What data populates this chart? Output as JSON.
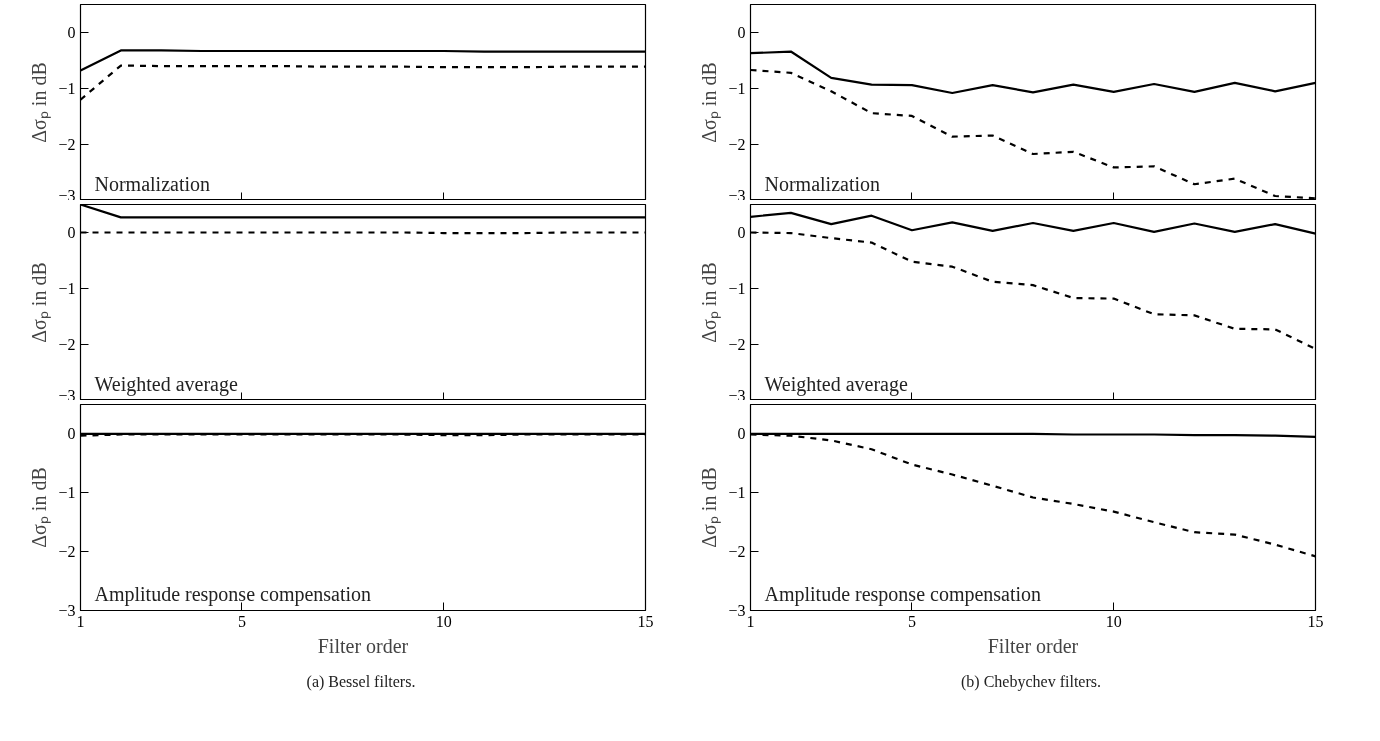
{
  "chart_data": [
    {
      "type": "line",
      "title": "Normalization",
      "ylabel": "Δσₚ in dB",
      "x": [
        1,
        2,
        3,
        4,
        5,
        6,
        7,
        8,
        9,
        10,
        11,
        12,
        13,
        14,
        15
      ],
      "xlim": [
        1,
        15
      ],
      "xticks": [
        1,
        5,
        10,
        15
      ],
      "ylim": [
        -3,
        0.5
      ],
      "yticks": [
        0,
        -1,
        -2,
        -3
      ],
      "tick_labels": "y",
      "grid": false,
      "series": [
        {
          "color": "#000000",
          "line_style": "solid",
          "values": [
            -0.68,
            -0.32,
            -0.32,
            -0.33,
            -0.33,
            -0.33,
            -0.33,
            -0.33,
            -0.33,
            -0.33,
            -0.34,
            -0.34,
            -0.34,
            -0.34,
            -0.34
          ]
        },
        {
          "color": "#000000",
          "line_style": "dashed",
          "values": [
            -1.2,
            -0.59,
            -0.6,
            -0.6,
            -0.6,
            -0.6,
            -0.61,
            -0.61,
            -0.61,
            -0.62,
            -0.62,
            -0.62,
            -0.61,
            -0.61,
            -0.61
          ]
        }
      ]
    },
    {
      "type": "line",
      "title": "Weighted average",
      "ylabel": "Δσₚ in dB",
      "x": [
        1,
        2,
        3,
        4,
        5,
        6,
        7,
        8,
        9,
        10,
        11,
        12,
        13,
        14,
        15
      ],
      "xlim": [
        1,
        15
      ],
      "xticks": [
        1,
        5,
        10,
        15
      ],
      "ylim": [
        -3,
        0.5
      ],
      "yticks": [
        0,
        -1,
        -2,
        -3
      ],
      "tick_labels": "y",
      "grid": false,
      "series": [
        {
          "color": "#000000",
          "line_style": "solid",
          "values": [
            0.5,
            0.27,
            0.27,
            0.27,
            0.27,
            0.27,
            0.27,
            0.27,
            0.27,
            0.27,
            0.27,
            0.27,
            0.27,
            0.27,
            0.27
          ]
        },
        {
          "color": "#000000",
          "line_style": "dashed",
          "values": [
            0,
            0,
            0,
            0,
            0,
            0,
            0,
            0,
            0,
            -0.01,
            -0.01,
            -0.01,
            0,
            0,
            0
          ]
        }
      ]
    },
    {
      "type": "line",
      "title": "Amplitude response compensation",
      "ylabel": "Δσₚ in dB",
      "xlabel": "Filter order",
      "annotations": [
        "(a)  Bessel filters."
      ],
      "x": [
        1,
        2,
        3,
        4,
        5,
        6,
        7,
        8,
        9,
        10,
        11,
        12,
        13,
        14,
        15
      ],
      "xlim": [
        1,
        15
      ],
      "xticks": [
        1,
        5,
        10,
        15
      ],
      "ylim": [
        -3,
        0.5
      ],
      "yticks": [
        0,
        -1,
        -2,
        -3
      ],
      "grid": false,
      "series": [
        {
          "color": "#000000",
          "line_style": "solid",
          "values": [
            0,
            0,
            0,
            0,
            0,
            0,
            0,
            0,
            0,
            0,
            0,
            0,
            0,
            0,
            0
          ]
        },
        {
          "color": "#000000",
          "line_style": "dashed",
          "values": [
            -0.03,
            -0.01,
            -0.01,
            -0.01,
            -0.01,
            -0.01,
            -0.01,
            -0.01,
            -0.01,
            -0.02,
            -0.02,
            -0.01,
            -0.01,
            -0.01,
            -0.01
          ]
        }
      ]
    },
    {
      "type": "line",
      "title": "Normalization",
      "ylabel": "Δσₚ in dB",
      "x": [
        1,
        2,
        3,
        4,
        5,
        6,
        7,
        8,
        9,
        10,
        11,
        12,
        13,
        14,
        15
      ],
      "xlim": [
        1,
        15
      ],
      "xticks": [
        1,
        5,
        10,
        15
      ],
      "ylim": [
        -3,
        0.5
      ],
      "yticks": [
        0,
        -1,
        -2,
        -3
      ],
      "tick_labels": "y",
      "grid": false,
      "series": [
        {
          "color": "#000000",
          "line_style": "solid",
          "values": [
            -0.37,
            -0.34,
            -0.81,
            -0.93,
            -0.94,
            -1.08,
            -0.94,
            -1.07,
            -0.93,
            -1.06,
            -0.92,
            -1.06,
            -0.9,
            -1.05,
            -0.9
          ]
        },
        {
          "color": "#000000",
          "line_style": "dashed",
          "values": [
            -0.67,
            -0.72,
            -1.05,
            -1.44,
            -1.49,
            -1.86,
            -1.84,
            -2.17,
            -2.13,
            -2.41,
            -2.39,
            -2.71,
            -2.61,
            -2.92,
            -2.96
          ]
        }
      ]
    },
    {
      "type": "line",
      "title": "Weighted average",
      "ylabel": "Δσₚ in dB",
      "x": [
        1,
        2,
        3,
        4,
        5,
        6,
        7,
        8,
        9,
        10,
        11,
        12,
        13,
        14,
        15
      ],
      "xlim": [
        1,
        15
      ],
      "xticks": [
        1,
        5,
        10,
        15
      ],
      "ylim": [
        -3,
        0.5
      ],
      "yticks": [
        0,
        -1,
        -2,
        -3
      ],
      "tick_labels": "y",
      "grid": false,
      "series": [
        {
          "color": "#000000",
          "line_style": "solid",
          "values": [
            0.28,
            0.35,
            0.15,
            0.3,
            0.04,
            0.18,
            0.03,
            0.17,
            0.03,
            0.17,
            0.01,
            0.16,
            0.01,
            0.15,
            -0.02
          ]
        },
        {
          "color": "#000000",
          "line_style": "dashed",
          "values": [
            0,
            -0.01,
            -0.1,
            -0.18,
            -0.52,
            -0.61,
            -0.88,
            -0.94,
            -1.17,
            -1.18,
            -1.46,
            -1.48,
            -1.72,
            -1.73,
            -2.08
          ]
        }
      ]
    },
    {
      "type": "line",
      "title": "Amplitude response compensation",
      "ylabel": "Δσₚ in dB",
      "xlabel": "Filter order",
      "annotations": [
        "(b)  Chebychev filters."
      ],
      "x": [
        1,
        2,
        3,
        4,
        5,
        6,
        7,
        8,
        9,
        10,
        11,
        12,
        13,
        14,
        15
      ],
      "xlim": [
        1,
        15
      ],
      "xticks": [
        1,
        5,
        10,
        15
      ],
      "ylim": [
        -3,
        0.5
      ],
      "yticks": [
        0,
        -1,
        -2,
        -3
      ],
      "grid": false,
      "series": [
        {
          "color": "#000000",
          "line_style": "solid",
          "values": [
            0,
            0,
            0,
            0,
            0,
            0,
            0,
            0,
            -0.01,
            -0.01,
            -0.01,
            -0.02,
            -0.02,
            -0.03,
            -0.05
          ]
        },
        {
          "color": "#000000",
          "line_style": "dashed",
          "values": [
            -0.01,
            -0.03,
            -0.11,
            -0.26,
            -0.52,
            -0.69,
            -0.88,
            -1.08,
            -1.19,
            -1.32,
            -1.5,
            -1.67,
            -1.71,
            -1.88,
            -2.08
          ]
        }
      ]
    }
  ]
}
